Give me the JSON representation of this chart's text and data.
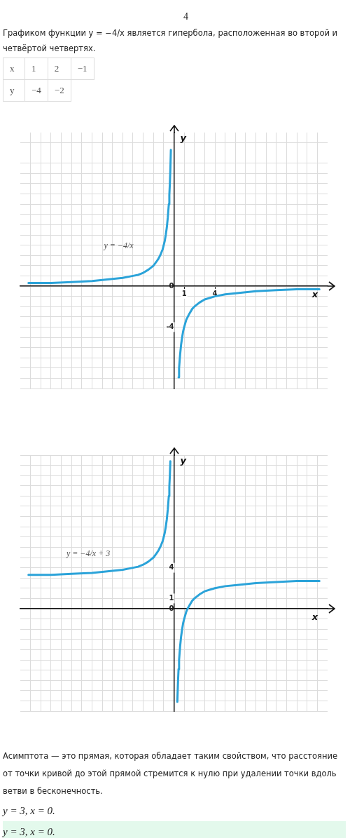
{
  "chart_data": [
    {
      "type": "other",
      "annotations": [
        "4",
        "Графиком функции y = −4/x является гипербола, расположенная во второй и четвёртой четвертях."
      ],
      "cell_labels": [
        [
          "x",
          "1",
          "2",
          "−1"
        ],
        [
          "y",
          "−4",
          "−2",
          null
        ]
      ]
    },
    {
      "type": "line",
      "xlabel": "x",
      "ylabel": "y",
      "marker": "none",
      "grid": true,
      "series": [
        {
          "name": "y = −4/x",
          "color": "#2ba3d9",
          "x": [
            -14.2,
            -12,
            -10,
            -8,
            -7,
            -6,
            -5,
            -4,
            -3.5,
            -3,
            -2.5,
            -2,
            -1.7,
            -1.5,
            -1.3,
            -1.1,
            -1,
            -0.9,
            -0.8,
            -0.7,
            -0.6,
            -0.5,
            -0.45,
            -0.4,
            -0.35,
            -0.3,
            0,
            0.45,
            0.5,
            0.6,
            0.7,
            0.8,
            0.9,
            1,
            1.2,
            1.5,
            1.8,
            2,
            2.5,
            3,
            4,
            5,
            6,
            8,
            10,
            12,
            14.2
          ],
          "values": [
            0.3,
            0.3,
            0.4,
            0.5,
            0.6,
            0.7,
            0.8,
            1,
            1.1,
            1.3,
            1.6,
            2,
            2.4,
            2.7,
            3.1,
            3.6,
            4,
            4.4,
            5,
            5.7,
            6.7,
            8,
            8.9,
            10,
            11.4,
            13.3,
            null,
            -8.9,
            -8,
            -6.7,
            -5.7,
            -5,
            -4.4,
            -4,
            -3.3,
            -2.7,
            -2.2,
            -2,
            -1.6,
            -1.3,
            -1,
            -0.8,
            -0.7,
            -0.5,
            -0.4,
            -0.3,
            -0.3
          ]
        }
      ],
      "xlim": [
        -15,
        15
      ],
      "ylim": [
        -10,
        15
      ],
      "xticks": [
        {
          "value": -14,
          "label": null
        },
        {
          "value": -13,
          "label": null
        },
        {
          "value": -12,
          "label": null
        },
        {
          "value": -11,
          "label": null
        },
        {
          "value": -10,
          "label": null
        },
        {
          "value": -9,
          "label": null
        },
        {
          "value": -8,
          "label": null
        },
        {
          "value": -7,
          "label": null
        },
        {
          "value": -6,
          "label": null
        },
        {
          "value": -5,
          "label": null
        },
        {
          "value": -4,
          "label": null
        },
        {
          "value": -3,
          "label": null
        },
        {
          "value": -2,
          "label": null
        },
        {
          "value": -1,
          "label": null
        },
        {
          "value": 0,
          "label": null
        },
        1,
        {
          "value": 2,
          "label": null
        },
        {
          "value": 3,
          "label": null
        },
        4,
        {
          "value": 5,
          "label": null
        },
        {
          "value": 6,
          "label": null
        },
        {
          "value": 7,
          "label": null
        },
        {
          "value": 8,
          "label": null
        },
        {
          "value": 9,
          "label": null
        },
        {
          "value": 10,
          "label": null
        },
        {
          "value": 11,
          "label": null
        },
        {
          "value": 12,
          "label": null
        },
        {
          "value": 13,
          "label": null
        },
        {
          "value": 14,
          "label": null
        }
      ],
      "yticks": [
        {
          "value": -10,
          "label": null
        },
        {
          "value": -9,
          "label": null
        },
        {
          "value": -8,
          "label": null
        },
        {
          "value": -7,
          "label": null
        },
        {
          "value": -6,
          "label": null
        },
        {
          "value": -5,
          "label": null
        },
        -4,
        {
          "value": -3,
          "label": null
        },
        {
          "value": -2,
          "label": null
        },
        {
          "value": -1,
          "label": null
        },
        0,
        {
          "value": 1,
          "label": null
        },
        {
          "value": 2,
          "label": null
        },
        {
          "value": 3,
          "label": null
        },
        {
          "value": 4,
          "label": null
        },
        {
          "value": 5,
          "label": null
        },
        {
          "value": 6,
          "label": null
        },
        {
          "value": 7,
          "label": null
        },
        {
          "value": 8,
          "label": null
        },
        {
          "value": 9,
          "label": null
        },
        {
          "value": 10,
          "label": null
        },
        {
          "value": 11,
          "label": null
        },
        {
          "value": 12,
          "label": null
        },
        {
          "value": 14,
          "label": null
        }
      ]
    },
    {
      "type": "line",
      "xlabel": "x",
      "ylabel": "y",
      "marker": "none",
      "grid": true,
      "series": [
        {
          "name": "y = −4/x + 3",
          "color": "#2ba3d9",
          "x": [
            -14.2,
            -12,
            -10,
            -8,
            -7,
            -6,
            -5,
            -4,
            -3.5,
            -3,
            -2.5,
            -2,
            -1.7,
            -1.5,
            -1.3,
            -1.1,
            -1,
            -0.9,
            -0.8,
            -0.7,
            -0.6,
            -0.5,
            -0.45,
            -0.4,
            -0.35,
            0,
            0.33,
            0.4,
            0.45,
            0.5,
            0.6,
            0.7,
            0.8,
            0.9,
            1,
            1.2,
            1.33,
            1.5,
            1.8,
            2,
            2.5,
            3,
            4,
            5,
            6,
            8,
            10,
            12,
            14.2
          ],
          "values": [
            3.3,
            3.3,
            3.4,
            3.5,
            3.6,
            3.7,
            3.8,
            4,
            4.1,
            4.3,
            4.6,
            5,
            5.4,
            5.7,
            6.1,
            6.6,
            7,
            7.4,
            8,
            8.7,
            9.7,
            11,
            11.9,
            13,
            14.4,
            null,
            -9.1,
            -7,
            -5.9,
            -5,
            -3.7,
            -2.7,
            -2,
            -1.4,
            -1,
            -0.3,
            0,
            0.3,
            0.8,
            1,
            1.4,
            1.7,
            2,
            2.2,
            2.3,
            2.5,
            2.6,
            2.7,
            2.7
          ]
        }
      ],
      "xlim": [
        -15,
        15
      ],
      "ylim": [
        -10,
        15
      ],
      "tick_labels": "y",
      "xticks": [
        {
          "value": -14,
          "label": null
        },
        {
          "value": -13,
          "label": null
        },
        {
          "value": -12,
          "label": null
        },
        {
          "value": -11,
          "label": null
        },
        {
          "value": -10,
          "label": null
        },
        {
          "value": -9,
          "label": null
        },
        {
          "value": -8,
          "label": null
        },
        {
          "value": -7,
          "label": null
        },
        {
          "value": -6,
          "label": null
        },
        {
          "value": -5,
          "label": null
        },
        {
          "value": -4,
          "label": null
        },
        {
          "value": -3,
          "label": null
        },
        {
          "value": -2,
          "label": null
        },
        {
          "value": -1,
          "label": null
        },
        {
          "value": 0,
          "label": null
        },
        {
          "value": 1,
          "label": null
        },
        {
          "value": 2,
          "label": null
        },
        {
          "value": 3,
          "label": null
        },
        {
          "value": 4,
          "label": null
        },
        {
          "value": 5,
          "label": null
        },
        {
          "value": 6,
          "label": null
        },
        {
          "value": 7,
          "label": null
        },
        {
          "value": 8,
          "label": null
        },
        {
          "value": 9,
          "label": null
        },
        {
          "value": 10,
          "label": null
        },
        {
          "value": 11,
          "label": null
        },
        {
          "value": 12,
          "label": null
        },
        {
          "value": 13,
          "label": null
        },
        {
          "value": 14,
          "label": null
        }
      ],
      "yticks": [
        {
          "value": -10,
          "label": null
        },
        {
          "value": -9,
          "label": null
        },
        {
          "value": -8,
          "label": null
        },
        {
          "value": -7,
          "label": null
        },
        {
          "value": -6,
          "label": null
        },
        {
          "value": -5,
          "label": null
        },
        {
          "value": -4,
          "label": null
        },
        {
          "value": -3,
          "label": null
        },
        {
          "value": -2,
          "label": null
        },
        {
          "value": -1,
          "label": null
        },
        0,
        1,
        {
          "value": 2,
          "label": null
        },
        {
          "value": 3,
          "label": null
        },
        4,
        {
          "value": 5,
          "label": null
        },
        {
          "value": 6,
          "label": null
        },
        {
          "value": 7,
          "label": null
        },
        {
          "value": 8,
          "label": null
        },
        {
          "value": 9,
          "label": null
        },
        {
          "value": 10,
          "label": null
        },
        {
          "value": 11,
          "label": null
        },
        {
          "value": 12,
          "label": null
        },
        {
          "value": 13,
          "label": null
        },
        {
          "value": 14,
          "label": null
        },
        {
          "value": 15,
          "label": null
        }
      ]
    },
    {
      "type": "other",
      "annotations": [
        "Асимптота — это прямая, которая обладает таким свойством, что расстояние от точки кривой до этой прямой стремится к нулю при удалении точки вдоль ветви в бесконечность.",
        "y = 3, x = 0.",
        "y = 3, x = 0."
      ]
    }
  ]
}
